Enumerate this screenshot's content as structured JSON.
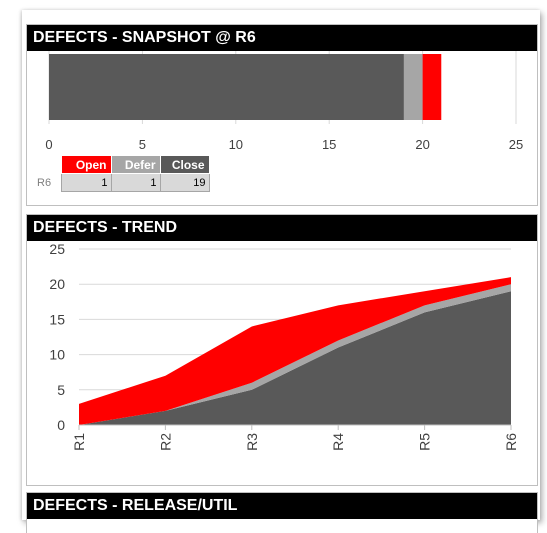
{
  "colors": {
    "open": "#ff0000",
    "defer": "#a6a6a6",
    "close": "#595959",
    "header_bg": "#000000",
    "header_text": "#ffffff"
  },
  "panels": {
    "snapshot": {
      "title": "DEFECTS - SNAPSHOT @ R6"
    },
    "trend": {
      "title": "DEFECTS - TREND"
    },
    "release": {
      "title": "DEFECTS - RELEASE/UTIL"
    }
  },
  "chart_data": [
    {
      "type": "bar",
      "orientation": "horizontal",
      "stacked": true,
      "categories": [
        "R6"
      ],
      "series": [
        {
          "name": "Close",
          "values": [
            19
          ]
        },
        {
          "name": "Defer",
          "values": [
            1
          ]
        },
        {
          "name": "Open",
          "values": [
            1
          ]
        }
      ],
      "xlim": [
        0,
        25
      ],
      "x_ticks": [
        "0",
        "5",
        "10",
        "15",
        "20",
        "25"
      ],
      "grid": true,
      "data_table": {
        "row_label": "R6",
        "headers": [
          "Open",
          "Defer",
          "Close"
        ],
        "values": [
          "1",
          "1",
          "19"
        ]
      }
    },
    {
      "type": "area",
      "stacked": true,
      "categories": [
        "R1",
        "R2",
        "R3",
        "R4",
        "R5",
        "R6"
      ],
      "series": [
        {
          "name": "Close",
          "values": [
            0,
            2,
            5,
            11,
            16,
            19
          ]
        },
        {
          "name": "Defer",
          "values": [
            0,
            0,
            1,
            1,
            1,
            1
          ]
        },
        {
          "name": "Open",
          "values": [
            3,
            5,
            8,
            5,
            2,
            1
          ]
        }
      ],
      "ylim": [
        0,
        25
      ],
      "y_ticks": [
        "0",
        "5",
        "10",
        "15",
        "20",
        "25"
      ],
      "grid": true
    }
  ]
}
